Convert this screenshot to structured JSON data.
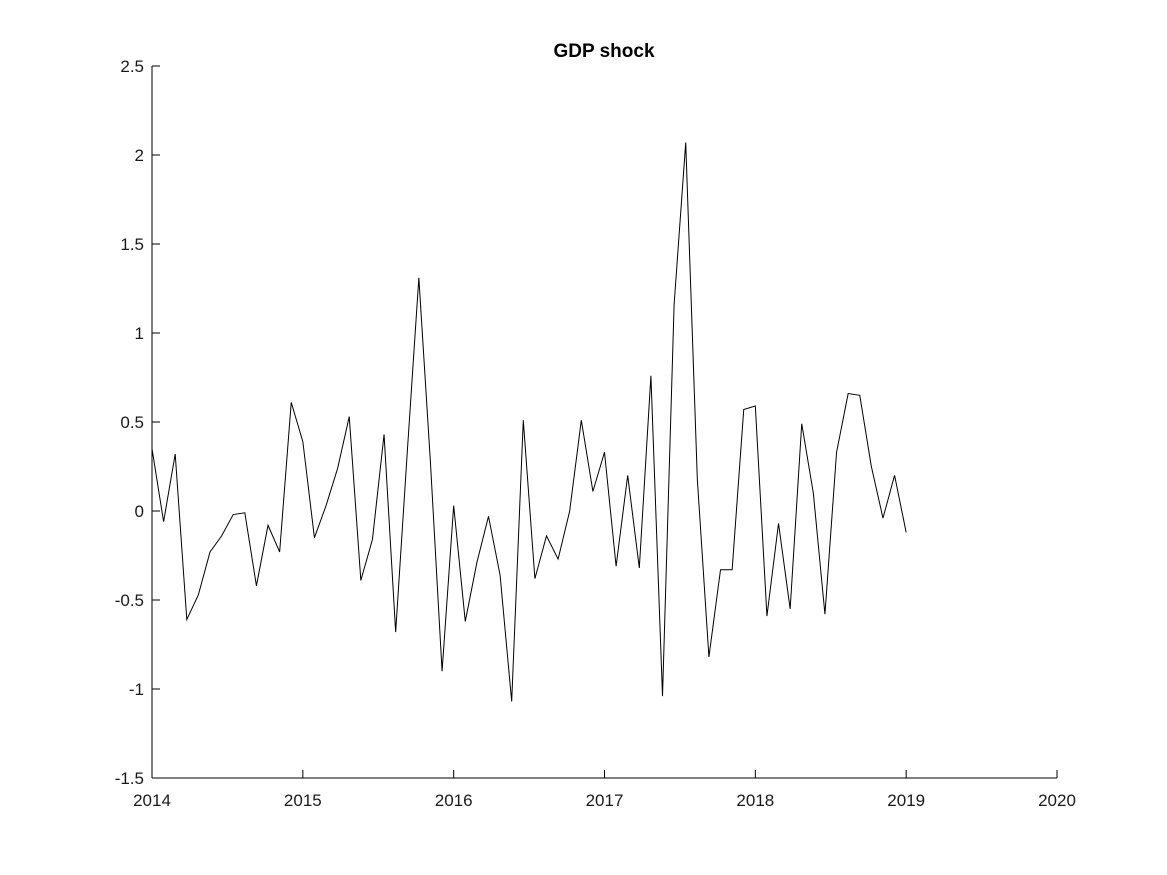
{
  "chart_data": {
    "type": "line",
    "title": "GDP shock",
    "xlabel": "",
    "ylabel": "",
    "xlim": [
      2014,
      2020
    ],
    "ylim": [
      -1.5,
      2.5
    ],
    "x_ticks": [
      "2014",
      "2015",
      "2016",
      "2017",
      "2018",
      "2019",
      "2020"
    ],
    "y_ticks": [
      "-1.5",
      "-1",
      "-0.5",
      "0",
      "0.5",
      "1",
      "1.5",
      "2",
      "2.5"
    ],
    "grid": false,
    "legend": "none",
    "line_color": "#000000",
    "series": [
      {
        "x": [
          2014.0,
          2014.0769,
          2014.1538,
          2014.2308,
          2014.3077,
          2014.3846,
          2014.4615,
          2014.5385,
          2014.6154,
          2014.6923,
          2014.7692,
          2014.8462,
          2014.9231,
          2015.0,
          2015.0769,
          2015.1538,
          2015.2308,
          2015.3077,
          2015.3846,
          2015.4615,
          2015.5385,
          2015.6154,
          2015.6923,
          2015.7692,
          2015.8462,
          2015.9231,
          2016.0,
          2016.0769,
          2016.1538,
          2016.2308,
          2016.3077,
          2016.3846,
          2016.4615,
          2016.5385,
          2016.6154,
          2016.6923,
          2016.7692,
          2016.8462,
          2016.9231,
          2017.0,
          2017.0769,
          2017.1538,
          2017.2308,
          2017.3077,
          2017.3846,
          2017.4615,
          2017.5385,
          2017.6154,
          2017.6923,
          2017.7692,
          2017.8462,
          2017.9231,
          2018.0,
          2018.0769,
          2018.1538,
          2018.2308,
          2018.3077,
          2018.3846,
          2018.4615,
          2018.5385,
          2018.6154,
          2018.6923,
          2018.7692,
          2018.8462,
          2018.9231,
          2019.0
        ],
        "y": [
          0.35,
          -0.06,
          0.32,
          -0.61,
          -0.47,
          -0.23,
          -0.14,
          -0.02,
          -0.01,
          -0.42,
          -0.08,
          -0.23,
          0.61,
          0.39,
          -0.15,
          0.03,
          0.24,
          0.53,
          -0.39,
          -0.16,
          0.43,
          -0.68,
          0.33,
          1.31,
          0.27,
          -0.9,
          0.03,
          -0.62,
          -0.29,
          -0.03,
          -0.36,
          -1.07,
          0.51,
          -0.38,
          -0.14,
          -0.27,
          0.0,
          0.51,
          0.11,
          0.33,
          -0.31,
          0.2,
          -0.32,
          0.76,
          -1.04,
          1.16,
          2.07,
          0.18,
          -0.82,
          -0.33,
          -0.33,
          0.57,
          0.59,
          -0.59,
          -0.07,
          -0.55,
          0.49,
          0.1,
          -0.58,
          0.33,
          0.66,
          0.65,
          0.25,
          -0.04,
          0.2,
          -0.12
        ]
      }
    ]
  }
}
